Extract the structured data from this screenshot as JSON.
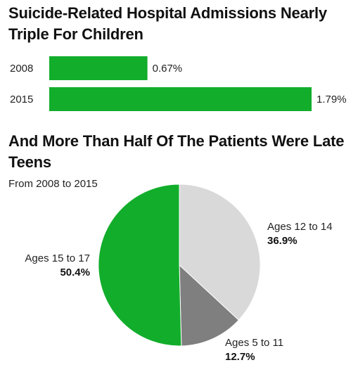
{
  "header": {
    "title": "Suicide-Related Hospital Admissions Nearly Triple For Children"
  },
  "section2": {
    "title": "And More Than Half Of The Patients Were Late Teens",
    "subtitle": "From 2008 to 2015"
  },
  "colors": {
    "bar": "#12ad2b",
    "pie": [
      "#d9d9d9",
      "#7f7f7f",
      "#12ad2b"
    ]
  },
  "chart_data": [
    {
      "type": "bar",
      "orientation": "horizontal",
      "categories": [
        "2008",
        "2015"
      ],
      "values": [
        0.67,
        1.79
      ],
      "value_labels": [
        "0.67%",
        "1.79%"
      ],
      "title": "Suicide-Related Hospital Admissions Nearly Triple For Children",
      "xlabel": "",
      "ylabel": "",
      "grid": false
    },
    {
      "type": "pie",
      "title": "And More Than Half Of The Patients Were Late Teens",
      "subtitle": "From 2008 to 2015",
      "slices": [
        {
          "label": "Ages 12 to 14",
          "value": 36.9,
          "value_label": "36.9%"
        },
        {
          "label": "Ages 5 to 11",
          "value": 12.7,
          "value_label": "12.7%"
        },
        {
          "label": "Ages 15 to 17",
          "value": 50.4,
          "value_label": "50.4%"
        }
      ],
      "start_angle": "12 o'clock",
      "direction": "clockwise"
    }
  ]
}
